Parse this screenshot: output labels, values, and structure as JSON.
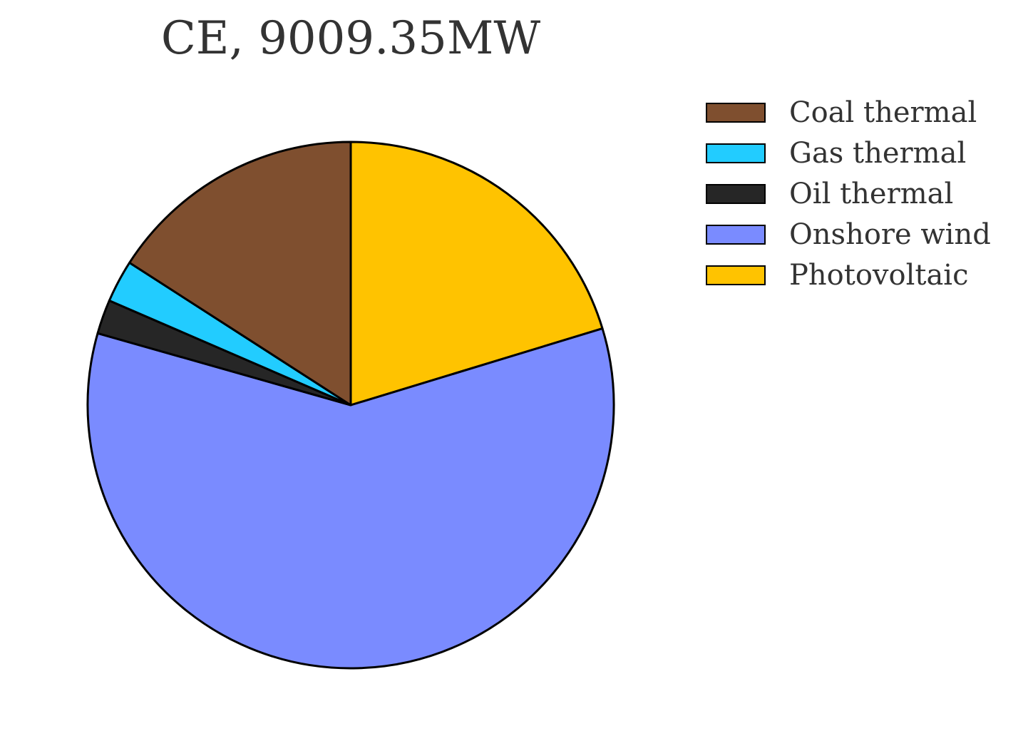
{
  "chart_data": {
    "type": "pie",
    "title": "CE, 9009.35MW",
    "total_mw": 9009.35,
    "start_angle_deg": 90,
    "direction": "clockwise",
    "slices": [
      {
        "label": "Photovoltaic",
        "percent": 20.3,
        "color": "#FFC300"
      },
      {
        "label": "Onshore wind",
        "percent": 59.1,
        "color": "#7A8BFF"
      },
      {
        "label": "Oil thermal",
        "percent": 2.1,
        "color": "#262626"
      },
      {
        "label": "Gas thermal",
        "percent": 2.6,
        "color": "#22CCFF"
      },
      {
        "label": "Coal thermal",
        "percent": 15.9,
        "color": "#7F4F2F"
      }
    ],
    "legend_position": "right",
    "legend_entries": [
      {
        "label": "Coal thermal",
        "color": "#7F4F2F"
      },
      {
        "label": "Gas thermal",
        "color": "#22CCFF"
      },
      {
        "label": "Oil thermal",
        "color": "#262626"
      },
      {
        "label": "Onshore wind",
        "color": "#7A8BFF"
      },
      {
        "label": "Photovoltaic",
        "color": "#FFC300"
      }
    ]
  }
}
